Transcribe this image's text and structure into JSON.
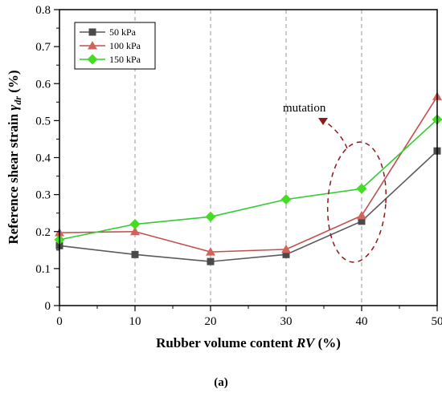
{
  "chart_data": {
    "type": "line",
    "x": [
      0,
      10,
      20,
      30,
      40,
      50
    ],
    "xlim": [
      0,
      50
    ],
    "ylim": [
      0,
      0.8
    ],
    "xticks": [
      "0",
      "10",
      "20",
      "30",
      "40",
      "50"
    ],
    "yticks": [
      "0",
      "0.1",
      "0.2",
      "0.3",
      "0.4",
      "0.5",
      "0.6",
      "0.7",
      "0.8"
    ],
    "xlabel_main": "Rubber volume content ",
    "xlabel_ital": "RV",
    "xlabel_tail": " (%)",
    "ylabel_main": "Reference shear strain ",
    "ylabel_sym": "γ",
    "ylabel_sub": "dr",
    "ylabel_tail": " (%)",
    "grid": "vertical dashed",
    "legend_position": "top-left",
    "series": [
      {
        "name": "50 kPa",
        "marker": "square",
        "line_color": "#5a5a5a",
        "marker_color": "#4a4a4a",
        "values": [
          0.162,
          0.138,
          0.119,
          0.138,
          0.228,
          0.418
        ]
      },
      {
        "name": "100 kPa",
        "marker": "triangle",
        "line_color": "#c0504d",
        "marker_color": "#d0645a",
        "values": [
          0.197,
          0.2,
          0.145,
          0.152,
          0.243,
          0.565
        ]
      },
      {
        "name": "150 kPa",
        "marker": "diamond",
        "line_color": "#33cc33",
        "marker_color": "#44dd22",
        "values": [
          0.178,
          0.22,
          0.24,
          0.287,
          0.316,
          0.503
        ]
      }
    ],
    "annotation": {
      "text": "mutation",
      "ellipse_color": "#8b1a1a"
    },
    "panel_label": "(a)"
  }
}
